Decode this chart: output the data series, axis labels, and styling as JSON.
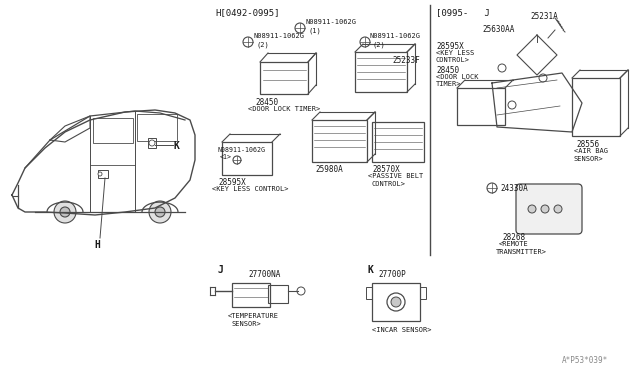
{
  "bg_color": "#ffffff",
  "line_color": "#4a4a4a",
  "text_color": "#1a1a1a",
  "fig_width": 6.4,
  "fig_height": 3.72,
  "dpi": 100,
  "watermark": "A*P53*039*",
  "section_H_label": "H[0492-0995]",
  "section_J_label": "[0995-   J"
}
